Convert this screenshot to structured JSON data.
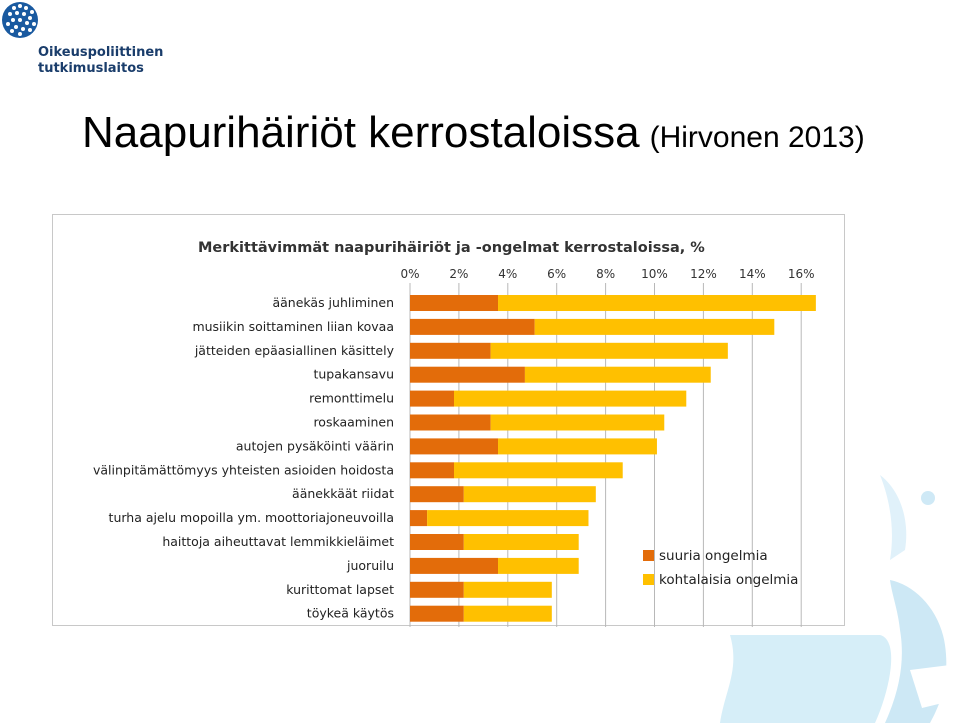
{
  "logo": {
    "line1": "Oikeuspoliittinen",
    "line2": "tutkimuslaitos",
    "icon": "dot-globe-logo-icon",
    "color": "#1a3d6b"
  },
  "slide": {
    "title": "Naapurihäiriöt kerrostaloissa",
    "subtitle": "(Hirvonen 2013)"
  },
  "chart_data": {
    "type": "bar",
    "orientation": "horizontal",
    "stacked": true,
    "title": "Merkittävimmät naapurihäiriöt ja -ongelmat kerrostaloissa, %",
    "xlim": [
      0,
      16.5
    ],
    "xticks": [
      "0%",
      "2%",
      "4%",
      "6%",
      "8%",
      "10%",
      "12%",
      "14%",
      "16%"
    ],
    "xtick_values": [
      0,
      2,
      4,
      6,
      8,
      10,
      12,
      14,
      16
    ],
    "grid": true,
    "legend_position": "bottom-right",
    "categories": [
      "äänekäs juhliminen",
      "musiikin soittaminen liian kovaa",
      "jätteiden epäasiallinen käsittely",
      "tupakansavu",
      "remonttimelu",
      "roskaaminen",
      "autojen pysäköinti väärin",
      "välinpitämättömyys yhteisten asioiden hoidosta",
      "äänekkäät riidat",
      "turha ajelu mopoilla ym. moottoriajoneuvoilla",
      "haittoja aiheuttavat lemmikkieläimet",
      "juoruilu",
      "kurittomat lapset",
      "töykeä käytös"
    ],
    "series": [
      {
        "name": "suuria ongelmia",
        "color": "#e36c0a",
        "values": [
          3.6,
          5.1,
          3.3,
          4.7,
          1.8,
          3.3,
          3.6,
          1.8,
          2.2,
          0.7,
          2.2,
          3.6,
          2.2,
          2.2
        ]
      },
      {
        "name": "kohtalaisia ongelmia",
        "color": "#ffc000",
        "values": [
          13.0,
          9.8,
          9.7,
          7.6,
          9.5,
          7.1,
          6.5,
          6.9,
          5.4,
          6.6,
          4.7,
          3.3,
          3.6,
          3.6
        ]
      }
    ]
  }
}
